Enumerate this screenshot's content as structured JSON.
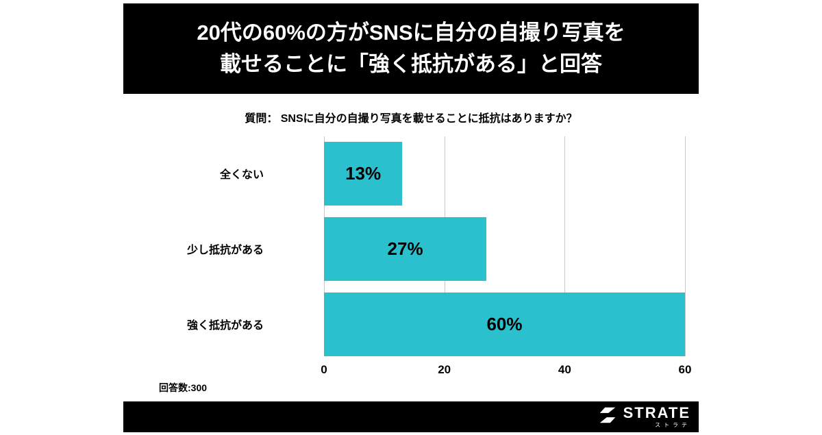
{
  "header": {
    "title_line1": "20代の60%の方がSNSに自分の自撮り写真を",
    "title_line2": "載せることに「強く抵抗がある」と回答"
  },
  "question": "質問： SNSに自分の自撮り写真を載せることに抵抗はありますか？",
  "footnote": "回答数:300",
  "footer": {
    "logo_text": "STRATE",
    "logo_subtext": "ストラテ"
  },
  "colors": {
    "bar": "#2bc0ce",
    "banner_bg": "#000000",
    "grid": "#c9c9c9"
  },
  "chart_data": {
    "type": "bar",
    "orientation": "horizontal",
    "title": "質問： SNSに自分の自撮り写真を載せることに抵抗はありますか？",
    "categories": [
      "全くない",
      "少し抵抗がある",
      "強く抵抗がある"
    ],
    "values": [
      13,
      27,
      60
    ],
    "value_labels": [
      "13%",
      "27%",
      "60%"
    ],
    "xlim": [
      0,
      60
    ],
    "xticks": [
      0,
      20,
      40,
      60
    ],
    "xlabel": "",
    "ylabel": "",
    "grid": true,
    "legend": false,
    "note": "回答数:300"
  }
}
